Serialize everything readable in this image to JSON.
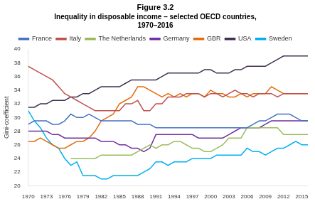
{
  "chart_data": {
    "type": "line",
    "title": "Figure 3.2",
    "subtitle": [
      "Inequality in disposable income – selected OECD countries,",
      "1970–2016"
    ],
    "y_label": "Gini-coefficient",
    "x": [
      1970,
      1971,
      1972,
      1973,
      1974,
      1975,
      1976,
      1977,
      1978,
      1979,
      1980,
      1981,
      1982,
      1983,
      1984,
      1985,
      1986,
      1987,
      1988,
      1989,
      1990,
      1991,
      1992,
      1993,
      1994,
      1995,
      1996,
      1997,
      1998,
      1999,
      2000,
      2001,
      2002,
      2003,
      2004,
      2005,
      2006,
      2007,
      2008,
      2009,
      2010,
      2011,
      2012,
      2013,
      2014,
      2015,
      2016
    ],
    "xlim": [
      1970,
      2016
    ],
    "xticks": [
      1970,
      1973,
      1976,
      1979,
      1982,
      1985,
      1988,
      1991,
      1994,
      1997,
      2000,
      2003,
      2006,
      2009,
      2012,
      2015
    ],
    "ylim": [
      20,
      40
    ],
    "yticks": [
      20,
      22,
      24,
      26,
      28,
      30,
      32,
      34,
      36,
      38,
      40
    ],
    "grid": false,
    "legend": "top",
    "series": [
      {
        "name": "France",
        "color": "#4472C4",
        "values": [
          29.0,
          29.5,
          29.5,
          29.5,
          29.0,
          29.0,
          29.5,
          30.5,
          30.0,
          30.0,
          30.5,
          30.0,
          29.5,
          29.5,
          29.5,
          29.5,
          29.5,
          29.5,
          29.0,
          29.0,
          29.0,
          28.5,
          28.5,
          28.5,
          28.5,
          28.5,
          28.5,
          28.5,
          28.5,
          28.5,
          28.5,
          28.5,
          28.5,
          28.5,
          28.5,
          28.5,
          28.5,
          29.0,
          29.5,
          29.5,
          30.0,
          30.5,
          30.5,
          30.5,
          30.0,
          29.5,
          29.5
        ]
      },
      {
        "name": "Italy",
        "color": "#C0504D",
        "values": [
          37.5,
          37.0,
          36.5,
          36.0,
          35.5,
          34.5,
          33.5,
          33.0,
          32.5,
          32.0,
          31.5,
          31.0,
          31.0,
          31.0,
          31.0,
          31.0,
          32.0,
          32.0,
          32.5,
          31.0,
          31.0,
          32.0,
          32.0,
          33.0,
          33.0,
          33.0,
          33.5,
          33.5,
          33.5,
          33.0,
          33.5,
          33.5,
          33.0,
          33.5,
          34.0,
          33.5,
          33.5,
          33.0,
          33.5,
          33.5,
          33.5,
          33.0,
          33.5,
          33.5,
          33.5,
          33.5,
          33.5
        ]
      },
      {
        "name": "The Netherlands",
        "color": "#9BBB59",
        "values": [
          null,
          null,
          null,
          null,
          null,
          null,
          null,
          24.0,
          24.0,
          24.0,
          24.0,
          24.0,
          24.5,
          24.5,
          24.5,
          24.5,
          24.5,
          24.5,
          25.0,
          25.5,
          26.0,
          25.5,
          26.0,
          26.0,
          26.5,
          26.5,
          26.0,
          25.5,
          25.5,
          25.0,
          25.0,
          25.5,
          26.0,
          27.0,
          27.0,
          27.0,
          28.5,
          28.5,
          28.5,
          28.5,
          28.5,
          28.5,
          27.5,
          27.5,
          27.5,
          27.5,
          27.5
        ]
      },
      {
        "name": "Germany",
        "color": "#7030A0",
        "values": [
          28.0,
          28.0,
          28.0,
          28.0,
          27.5,
          27.5,
          27.0,
          27.0,
          27.0,
          27.0,
          27.0,
          27.0,
          26.5,
          26.5,
          26.5,
          26.0,
          26.0,
          25.5,
          25.5,
          25.0,
          25.5,
          27.5,
          27.5,
          27.5,
          27.5,
          27.5,
          27.5,
          27.5,
          27.0,
          27.0,
          27.0,
          27.0,
          27.0,
          27.5,
          28.0,
          28.5,
          28.5,
          28.5,
          28.5,
          29.0,
          29.5,
          29.5,
          29.5,
          29.5,
          29.5,
          29.5,
          29.5
        ]
      },
      {
        "name": "GBR",
        "color": "#E36C09",
        "values": [
          26.5,
          26.5,
          27.0,
          26.5,
          26.0,
          25.5,
          25.5,
          26.0,
          26.5,
          26.5,
          27.0,
          28.0,
          29.5,
          30.0,
          30.5,
          32.0,
          32.5,
          33.0,
          34.5,
          34.5,
          34.0,
          33.5,
          33.0,
          33.5,
          33.0,
          33.5,
          33.0,
          33.5,
          33.5,
          33.0,
          34.0,
          33.5,
          33.5,
          33.0,
          33.0,
          33.5,
          33.0,
          33.5,
          33.5,
          33.5,
          34.5,
          34.0,
          33.5,
          33.5,
          33.5,
          33.5,
          33.5
        ]
      },
      {
        "name": "USA",
        "color": "#403152",
        "values": [
          31.5,
          31.5,
          32.0,
          32.0,
          32.5,
          32.5,
          32.5,
          33.0,
          33.0,
          33.5,
          33.5,
          34.0,
          34.5,
          34.5,
          34.5,
          34.5,
          35.0,
          35.5,
          35.5,
          35.5,
          35.5,
          35.5,
          36.0,
          36.5,
          36.5,
          36.5,
          36.5,
          36.5,
          36.5,
          37.0,
          37.0,
          36.5,
          36.5,
          36.5,
          37.0,
          37.0,
          37.5,
          37.5,
          37.5,
          37.5,
          38.0,
          38.5,
          39.0,
          39.0,
          39.0,
          39.0,
          39.0
        ]
      },
      {
        "name": "Sweden",
        "color": "#00B0F0",
        "values": [
          31.0,
          29.5,
          28.5,
          27.0,
          26.0,
          25.5,
          24.0,
          23.0,
          23.5,
          21.5,
          21.5,
          21.5,
          21.0,
          21.0,
          21.5,
          21.5,
          21.5,
          21.5,
          21.5,
          22.0,
          22.5,
          23.5,
          23.5,
          23.0,
          23.5,
          23.5,
          23.5,
          24.0,
          24.0,
          24.0,
          24.0,
          24.5,
          24.5,
          24.5,
          24.5,
          24.5,
          25.5,
          25.0,
          25.0,
          24.5,
          25.0,
          25.5,
          25.5,
          26.0,
          26.5,
          26.0,
          26.0
        ]
      }
    ]
  }
}
